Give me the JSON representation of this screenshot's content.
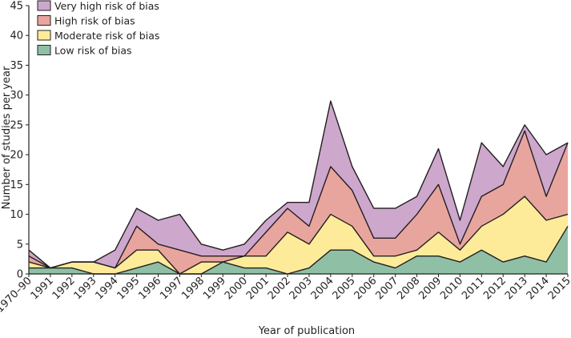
{
  "chart_data": {
    "type": "area",
    "stacked": true,
    "xlabel": "Year of publication",
    "ylabel": "Number of studies per year",
    "ylim": [
      0,
      45
    ],
    "yticks": [
      0,
      5,
      10,
      15,
      20,
      25,
      30,
      35,
      40,
      45
    ],
    "grid": false,
    "legend_position": "top-left",
    "categories": [
      "1970–90",
      "1991",
      "1992",
      "1993",
      "1994",
      "1995",
      "1996",
      "1997",
      "1998",
      "1999",
      "2000",
      "2001",
      "2002",
      "2003",
      "2004",
      "2005",
      "2006",
      "2007",
      "2008",
      "2009",
      "2010",
      "2011",
      "2012",
      "2013",
      "2014",
      "2015"
    ],
    "series": [
      {
        "name": "Low risk of bias",
        "color": "#8fc0a5",
        "values": [
          1,
          1,
          1,
          0,
          0,
          1,
          2,
          0,
          0,
          2,
          1,
          1,
          0,
          1,
          4,
          4,
          2,
          1,
          3,
          3,
          2,
          4,
          2,
          3,
          2,
          8
        ]
      },
      {
        "name": "Moderate risk of bias",
        "color": "#fdeb9a",
        "values": [
          1,
          0,
          1,
          2,
          1,
          3,
          2,
          0,
          2,
          0,
          2,
          2,
          7,
          4,
          6,
          4,
          1,
          2,
          1,
          4,
          2,
          4,
          8,
          10,
          7,
          2
        ]
      },
      {
        "name": "High risk of bias",
        "color": "#e8a59e",
        "values": [
          1,
          0,
          0,
          0,
          0,
          4,
          1,
          4,
          1,
          1,
          0,
          4,
          4,
          3,
          8,
          6,
          3,
          3,
          6,
          8,
          1,
          5,
          5,
          11,
          4,
          12
        ]
      },
      {
        "name": "Very high risk of bias",
        "color": "#cea7cd",
        "values": [
          1,
          0,
          0,
          0,
          3,
          3,
          4,
          6,
          2,
          1,
          2,
          2,
          1,
          4,
          11,
          4,
          5,
          5,
          3,
          6,
          4,
          9,
          3,
          1,
          7,
          0
        ]
      }
    ]
  }
}
